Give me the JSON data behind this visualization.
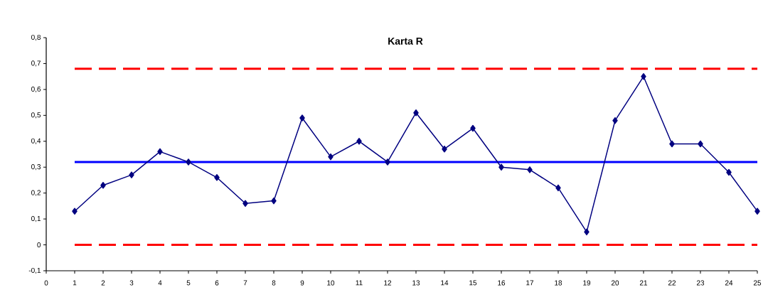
{
  "chart_data": {
    "type": "line",
    "title": "Karta R",
    "x": [
      1,
      2,
      3,
      4,
      5,
      6,
      7,
      8,
      9,
      10,
      11,
      12,
      13,
      14,
      15,
      16,
      17,
      18,
      19,
      20,
      21,
      22,
      23,
      24,
      25
    ],
    "series": [
      {
        "color": "#000080",
        "values": [
          0.13,
          0.23,
          0.27,
          0.36,
          0.32,
          0.26,
          0.16,
          0.17,
          0.49,
          0.34,
          0.4,
          0.32,
          0.51,
          0.37,
          0.45,
          0.3,
          0.29,
          0.22,
          0.05,
          0.48,
          0.65,
          0.39,
          0.39,
          0.28,
          0.13
        ]
      }
    ],
    "marker": "diamond",
    "line_style": "solid",
    "grid": false,
    "xlim": [
      0,
      25
    ],
    "ylim": [
      -0.1,
      0.8
    ],
    "xticks": [
      0,
      1,
      2,
      3,
      4,
      5,
      6,
      7,
      8,
      9,
      10,
      11,
      12,
      13,
      14,
      15,
      16,
      17,
      18,
      19,
      20,
      21,
      22,
      23,
      24,
      25
    ],
    "yticks": [
      {
        "value": -0.1,
        "label": "-0,1"
      },
      {
        "value": 0,
        "label": "0"
      },
      {
        "value": 0.1,
        "label": "0,1"
      },
      {
        "value": 0.2,
        "label": "0,2"
      },
      {
        "value": 0.3,
        "label": "0,3"
      },
      {
        "value": 0.4,
        "label": "0,4"
      },
      {
        "value": 0.5,
        "label": "0,5"
      },
      {
        "value": 0.6,
        "label": "0,6"
      },
      {
        "value": 0.7,
        "label": "0,7"
      },
      {
        "value": 0.8,
        "label": "0,8"
      }
    ],
    "ref_lines": [
      {
        "axis": "y",
        "value": 0.68,
        "color": "#ff0000",
        "line_style": "dashed"
      },
      {
        "axis": "y",
        "value": 0.32,
        "color": "#0000ff",
        "line_style": "solid"
      },
      {
        "axis": "y",
        "value": 0,
        "color": "#ff0000",
        "line_style": "dashed"
      }
    ]
  }
}
